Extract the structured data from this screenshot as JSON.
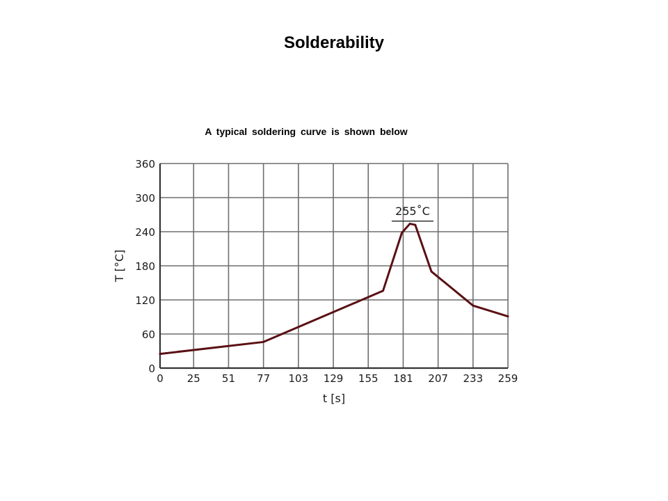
{
  "page": {
    "title": "Solderability",
    "subtitle": "A typical soldering curve is shown below"
  },
  "chart_data": {
    "type": "line",
    "title": "",
    "xlabel": "t [s]",
    "ylabel": "T [°C]",
    "xlim": [
      0,
      259
    ],
    "ylim": [
      0,
      360
    ],
    "x_ticks": [
      0,
      25,
      51,
      77,
      103,
      129,
      155,
      181,
      207,
      233,
      259
    ],
    "y_ticks": [
      0,
      60,
      120,
      180,
      240,
      300,
      360
    ],
    "grid": true,
    "legend": "none",
    "series": [
      {
        "color": "#5a1014",
        "points": [
          {
            "x": 0,
            "y": 25
          },
          {
            "x": 77,
            "y": 46
          },
          {
            "x": 166,
            "y": 136
          },
          {
            "x": 180,
            "y": 238
          },
          {
            "x": 186,
            "y": 254
          },
          {
            "x": 190,
            "y": 252
          },
          {
            "x": 202,
            "y": 170
          },
          {
            "x": 233,
            "y": 110
          },
          {
            "x": 259,
            "y": 91
          }
        ]
      }
    ],
    "annotations": [
      {
        "text": "255˚C",
        "x": 188,
        "y": 255
      }
    ]
  }
}
